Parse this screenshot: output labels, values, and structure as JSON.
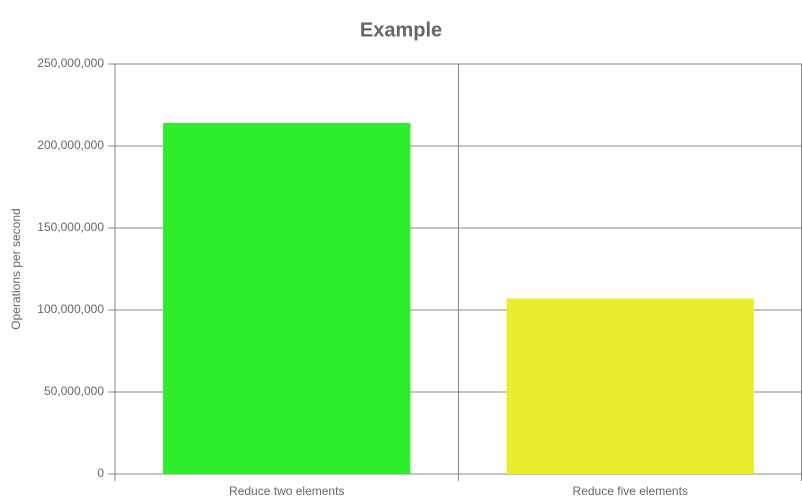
{
  "chart_data": {
    "type": "bar",
    "title": "Example",
    "y_label": "Operations per second",
    "categories": [
      "Reduce two elements",
      "Reduce five elements"
    ],
    "values": [
      214000000,
      107000000
    ],
    "colors": [
      "#2ded2d",
      "#eaed2d"
    ],
    "ylim": [
      0,
      250000000
    ],
    "yticks": [
      0,
      {
        "value": 50000000,
        "label": "50,000,000"
      },
      {
        "value": 100000000,
        "label": "100,000,000"
      },
      {
        "value": 150000000,
        "label": "150,000,000"
      },
      {
        "value": 200000000,
        "label": "200,000,000"
      },
      {
        "value": 250000000,
        "label": "250,000,000"
      }
    ],
    "grid": true
  }
}
